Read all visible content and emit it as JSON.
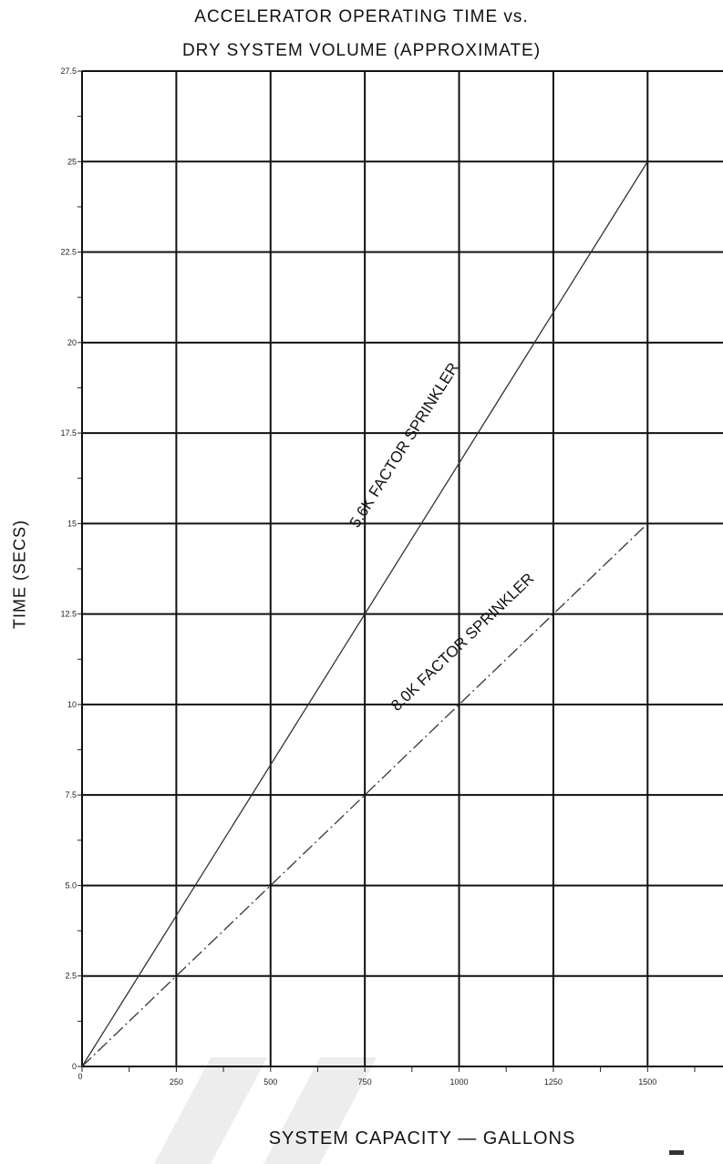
{
  "chart_data": {
    "type": "line",
    "title_lines": [
      "ACCELERATOR OPERATING TIME vs.",
      "DRY SYSTEM VOLUME (APPROXIMATE)"
    ],
    "xlabel": "SYSTEM CAPACITY — GALLONS",
    "ylabel": "TIME (SECS)",
    "xlim": [
      0,
      1700
    ],
    "ylim": [
      0,
      27.5
    ],
    "x_tick_labels": [
      "250",
      "500",
      "750",
      "1000",
      "1250",
      "1500"
    ],
    "x_ticks": [
      250,
      500,
      750,
      1000,
      1250,
      1500
    ],
    "y_tick_labels": [
      "0",
      "2.5",
      "5.0",
      "7.5",
      "10",
      "12.5",
      "15",
      "17.5",
      "20",
      "22.5",
      "25",
      "27.5"
    ],
    "y_ticks": [
      0,
      2.5,
      5,
      7.5,
      10,
      12.5,
      15,
      17.5,
      20,
      22.5,
      25,
      27.5
    ],
    "grid": true,
    "series": [
      {
        "name": "5.6K FACTOR SPRINKLER",
        "x": [
          0,
          1500
        ],
        "y": [
          0,
          25
        ],
        "style": "solid",
        "color": "#333333",
        "label_anchor_x": 880,
        "label_anchor_y": 17
      },
      {
        "name": "8.0K FACTOR SPRINKLER",
        "x": [
          0,
          1500
        ],
        "y": [
          0,
          15
        ],
        "style": "dash-dot",
        "color": "#333333",
        "label_anchor_x": 1030,
        "label_anchor_y": 11.5
      }
    ]
  }
}
